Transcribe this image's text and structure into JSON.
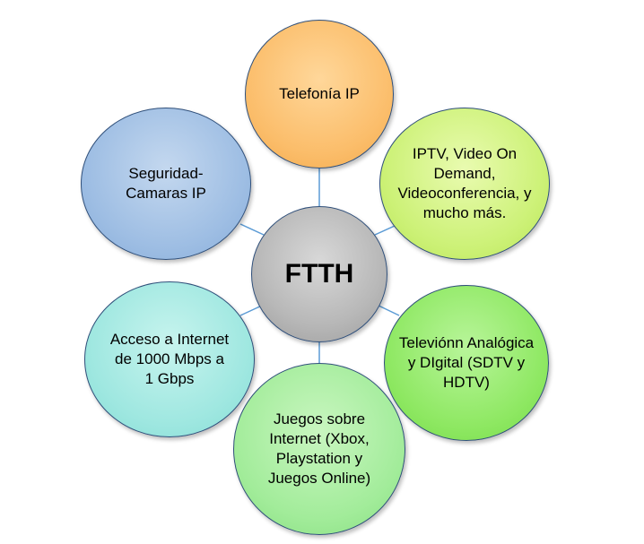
{
  "diagram": {
    "center": {
      "label": "FTTH"
    },
    "nodes": {
      "telefonia": {
        "label": "Telefonía IP"
      },
      "iptv": {
        "label": "IPTV, Video On Demand, Videoconferencia, y mucho más."
      },
      "television": {
        "label": "Televiónn Analógica y DIgital (SDTV y HDTV)"
      },
      "juegos": {
        "label": "Juegos sobre Internet (Xbox, Playstation y Juegos Online)"
      },
      "acceso": {
        "label": "Acceso a Internet de 1000 Mbps a 1 Gbps"
      },
      "seguridad": {
        "label": "Seguridad-Camaras IP"
      }
    },
    "colors": {
      "connector": "#5b9bd5",
      "border": "#2f4f7a",
      "center": "#b8b8b8",
      "telefonia": "#fbbd6a",
      "iptv": "#ccf176",
      "television": "#8ee862",
      "juegos": "#a2ec9a",
      "acceso": "#9ee7e0",
      "seguridad": "#9dbde3"
    }
  }
}
